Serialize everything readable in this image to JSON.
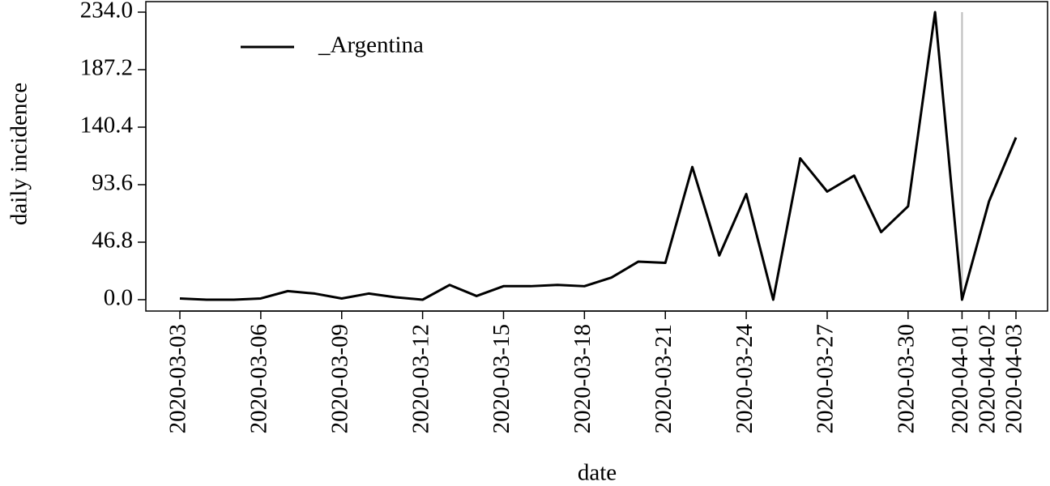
{
  "chart_data": {
    "type": "line",
    "x_label": "date",
    "y_label": "daily incidence",
    "x": [
      "2020-03-03",
      "2020-03-04",
      "2020-03-05",
      "2020-03-06",
      "2020-03-07",
      "2020-03-08",
      "2020-03-09",
      "2020-03-10",
      "2020-03-11",
      "2020-03-12",
      "2020-03-13",
      "2020-03-14",
      "2020-03-15",
      "2020-03-16",
      "2020-03-17",
      "2020-03-18",
      "2020-03-19",
      "2020-03-20",
      "2020-03-21",
      "2020-03-22",
      "2020-03-23",
      "2020-03-24",
      "2020-03-25",
      "2020-03-26",
      "2020-03-27",
      "2020-03-28",
      "2020-03-29",
      "2020-03-30",
      "2020-03-31",
      "2020-04-01",
      "2020-04-02",
      "2020-04-03"
    ],
    "series": [
      {
        "name": "_Argentina",
        "color": "#000000",
        "values": [
          1,
          0,
          0,
          1,
          7,
          5,
          1,
          5,
          2,
          0,
          12,
          3,
          11,
          11,
          12,
          11,
          18,
          31,
          30,
          108,
          36,
          86,
          0,
          115,
          88,
          101,
          55,
          76,
          234,
          0,
          80,
          132
        ]
      }
    ],
    "xticks": [
      "2020-03-03",
      "2020-03-06",
      "2020-03-09",
      "2020-03-12",
      "2020-03-15",
      "2020-03-18",
      "2020-03-21",
      "2020-03-24",
      "2020-03-27",
      "2020-03-30",
      "2020-04-01",
      "2020-04-02",
      "2020-04-03"
    ],
    "ylim": [
      0,
      234
    ],
    "yticks": [
      {
        "value": 0,
        "label": "0.0"
      },
      46.8,
      93.6,
      140.4,
      187.2,
      {
        "value": 234,
        "label": "234.0"
      }
    ],
    "vline_x": "2020-04-01",
    "vline_color": "#bbbbbb",
    "legend": "upper left"
  }
}
